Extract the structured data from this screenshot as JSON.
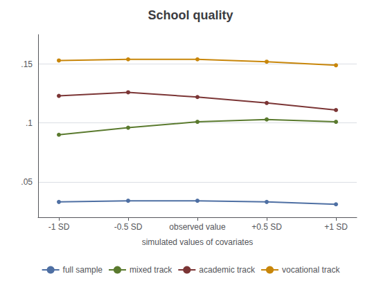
{
  "chart_data": {
    "type": "line",
    "title": "School quality",
    "xlabel": "simulated values of covariates",
    "x": [
      -1,
      -0.5,
      0,
      0.5,
      1
    ],
    "xlim": [
      -1.15,
      1.15
    ],
    "xticks": [
      {
        "value": -1,
        "label": "-1 SD"
      },
      {
        "value": -0.5,
        "label": "-0.5 SD"
      },
      {
        "value": 0,
        "label": "observed value"
      },
      {
        "value": 0.5,
        "label": "+0.5 SD"
      },
      {
        "value": 1,
        "label": "+1 SD"
      }
    ],
    "ylim": [
      0.02,
      0.175
    ],
    "yticks": [
      {
        "value": 0.05,
        "label": ".05"
      },
      {
        "value": 0.1,
        "label": ".1"
      },
      {
        "value": 0.15,
        "label": ".15"
      }
    ],
    "grid": true,
    "legend": "bottom",
    "marker": "circle",
    "series": [
      {
        "name": "full sample",
        "color": "#4e6fa3",
        "values": [
          0.033,
          0.034,
          0.034,
          0.033,
          0.031
        ]
      },
      {
        "name": "mixed track",
        "color": "#5a7a2e",
        "values": [
          0.09,
          0.096,
          0.101,
          0.103,
          0.101
        ]
      },
      {
        "name": "academic track",
        "color": "#7b3535",
        "values": [
          0.123,
          0.126,
          0.122,
          0.117,
          0.111
        ]
      },
      {
        "name": "vocational track",
        "color": "#c8860a",
        "values": [
          0.153,
          0.154,
          0.154,
          0.152,
          0.149
        ]
      }
    ]
  }
}
